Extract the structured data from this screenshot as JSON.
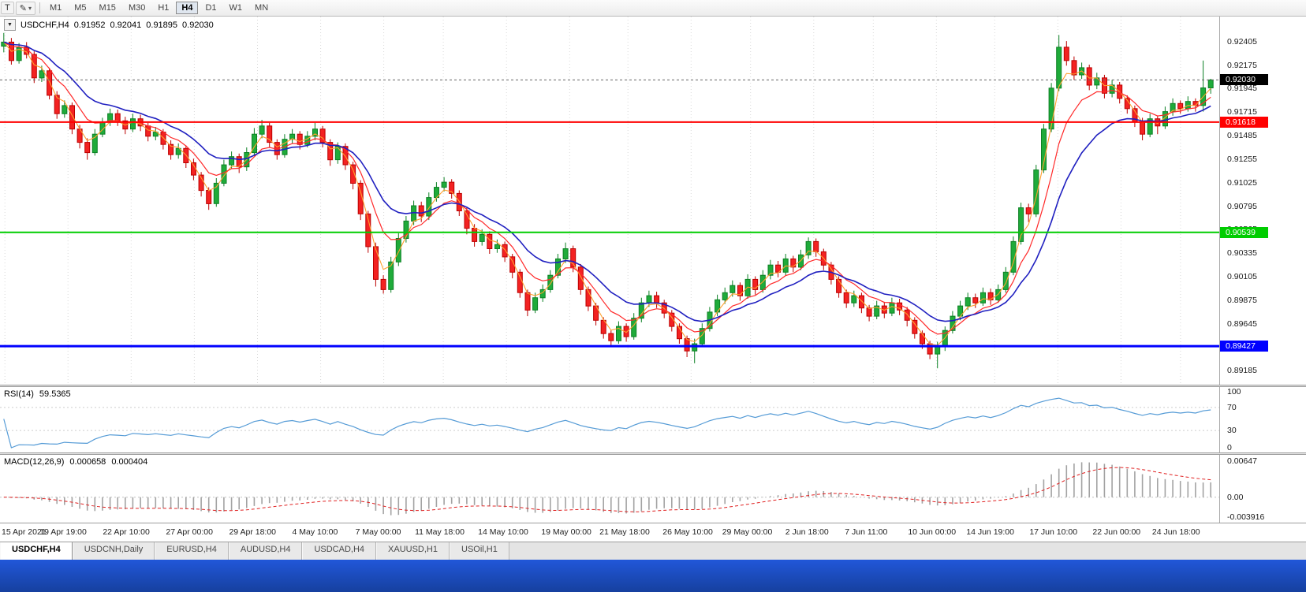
{
  "toolbar": {
    "left_buttons": [
      {
        "name": "templates-button",
        "glyph": "T",
        "dropdown": false
      },
      {
        "name": "drawing-tool-button",
        "glyph": "✎",
        "dropdown": true
      }
    ],
    "timeframes": [
      {
        "label": "M1",
        "active": false
      },
      {
        "label": "M5",
        "active": false
      },
      {
        "label": "M15",
        "active": false
      },
      {
        "label": "M30",
        "active": false
      },
      {
        "label": "H1",
        "active": false
      },
      {
        "label": "H4",
        "active": true
      },
      {
        "label": "D1",
        "active": false
      },
      {
        "label": "W1",
        "active": false
      },
      {
        "label": "MN",
        "active": false
      }
    ]
  },
  "chart_header": {
    "collapse_glyph": "▼",
    "symbol_period": "USDCHF,H4",
    "open": "0.91952",
    "high": "0.92041",
    "low": "0.91895",
    "close": "0.92030"
  },
  "rsi_panel": {
    "label": "RSI(14)",
    "value": "59.5365",
    "line_color": "#559bd6",
    "axis": [
      {
        "text": "100",
        "v": 100
      },
      {
        "text": "70",
        "v": 70
      },
      {
        "text": "30",
        "v": 30
      },
      {
        "text": "0",
        "v": 0
      }
    ]
  },
  "macd_panel": {
    "label": "MACD(12,26,9)",
    "main_value": "0.000658",
    "signal_value": "0.000404",
    "histogram_color": "#a3a3a3",
    "signal_color": "#e02020",
    "axis": [
      {
        "text": "0.00647",
        "role": "max"
      },
      {
        "text": "0.00",
        "role": "zero"
      },
      {
        "text": "-0.003916",
        "role": "min"
      }
    ]
  },
  "tabs": [
    {
      "label": "USDCHF,H4",
      "active": true
    },
    {
      "label": "USDCNH,Daily",
      "active": false
    },
    {
      "label": "EURUSD,H4",
      "active": false
    },
    {
      "label": "AUDUSD,H4",
      "active": false
    },
    {
      "label": "USDCAD,H4",
      "active": false
    },
    {
      "label": "XAUUSD,H1",
      "active": false
    },
    {
      "label": "USOil,H1",
      "active": false
    }
  ],
  "colors": {
    "bull": "#1fab3a",
    "bull_border": "#0c8024",
    "bear": "#f32222",
    "bear_border": "#bb0000",
    "grid": "#d9d9d9",
    "current_price_line": "#666666",
    "current_price_badge": "#000000",
    "taskbar_blue": "#2157d9"
  },
  "chart_data": {
    "type": "candlestick",
    "symbol": "USDCHF",
    "timeframe": "H4",
    "current_price": "0.92030",
    "price_axis": {
      "min": 0.8905,
      "max": 0.9265,
      "labels": [
        "0.92405",
        "0.92175",
        "0.91945",
        "0.91715",
        "0.91485",
        "0.91255",
        "0.91025",
        "0.90795",
        "0.90565",
        "0.90335",
        "0.90105",
        "0.89875",
        "0.89645",
        "0.89415",
        "0.89185"
      ]
    },
    "hlines": [
      {
        "price": 0.91618,
        "label": "0.91618",
        "color": "#ff0000",
        "width": 2
      },
      {
        "price": 0.90539,
        "label": "0.90539",
        "color": "#00cd00",
        "width": 2
      },
      {
        "price": 0.89427,
        "label": "0.89427",
        "color": "#0000ff",
        "width": 3
      }
    ],
    "moving_averages": [
      {
        "period": 3,
        "color": "#ff9f2e",
        "width": 1.1
      },
      {
        "period": 7,
        "color": "#ff2a2a",
        "width": 1.2
      },
      {
        "period": 14,
        "color": "#2020c0",
        "width": 1.6
      }
    ],
    "indicators": {
      "rsi_period": 14,
      "macd": [
        12,
        26,
        9
      ]
    },
    "time_labels": [
      {
        "text": "15 Apr 2021",
        "pos": 0.004
      },
      {
        "text": "19 Apr 19:00",
        "pos": 0.056
      },
      {
        "text": "22 Apr 10:00",
        "pos": 0.108
      },
      {
        "text": "27 Apr 00:00",
        "pos": 0.16
      },
      {
        "text": "29 Apr 18:00",
        "pos": 0.212
      },
      {
        "text": "4 May 10:00",
        "pos": 0.264
      },
      {
        "text": "7 May 00:00",
        "pos": 0.316
      },
      {
        "text": "11 May 18:00",
        "pos": 0.365
      },
      {
        "text": "14 May 10:00",
        "pos": 0.417
      },
      {
        "text": "19 May 00:00",
        "pos": 0.469
      },
      {
        "text": "21 May 18:00",
        "pos": 0.517
      },
      {
        "text": "26 May 10:00",
        "pos": 0.569
      },
      {
        "text": "29 May 00:00",
        "pos": 0.618
      },
      {
        "text": "2 Jun 18:00",
        "pos": 0.67
      },
      {
        "text": "7 Jun 11:00",
        "pos": 0.719
      },
      {
        "text": "10 Jun 00:00",
        "pos": 0.771
      },
      {
        "text": "14 Jun 19:00",
        "pos": 0.819
      },
      {
        "text": "17 Jun 10:00",
        "pos": 0.871
      },
      {
        "text": "22 Jun 00:00",
        "pos": 0.923
      },
      {
        "text": "24 Jun 18:00",
        "pos": 0.972
      }
    ],
    "candles": [
      [
        0.9236,
        0.9249,
        0.923,
        0.924
      ],
      [
        0.924,
        0.9244,
        0.9218,
        0.9222
      ],
      [
        0.9222,
        0.9239,
        0.9219,
        0.9235
      ],
      [
        0.9235,
        0.924,
        0.9224,
        0.9228
      ],
      [
        0.9228,
        0.9231,
        0.92,
        0.9205
      ],
      [
        0.9205,
        0.9217,
        0.9201,
        0.9212
      ],
      [
        0.9212,
        0.9215,
        0.9184,
        0.9188
      ],
      [
        0.9188,
        0.9192,
        0.9165,
        0.917
      ],
      [
        0.917,
        0.9183,
        0.9166,
        0.9178
      ],
      [
        0.9178,
        0.9181,
        0.915,
        0.9155
      ],
      [
        0.9155,
        0.9159,
        0.9136,
        0.9142
      ],
      [
        0.9142,
        0.9146,
        0.9125,
        0.9132
      ],
      [
        0.9132,
        0.9155,
        0.9129,
        0.915
      ],
      [
        0.915,
        0.9166,
        0.9147,
        0.9162
      ],
      [
        0.9162,
        0.9175,
        0.9158,
        0.917
      ],
      [
        0.917,
        0.9174,
        0.9158,
        0.9163
      ],
      [
        0.9163,
        0.9167,
        0.915,
        0.9155
      ],
      [
        0.9155,
        0.917,
        0.9152,
        0.9165
      ],
      [
        0.9165,
        0.9169,
        0.9153,
        0.9158
      ],
      [
        0.9158,
        0.9161,
        0.9143,
        0.9148
      ],
      [
        0.9148,
        0.9157,
        0.9144,
        0.9152
      ],
      [
        0.9152,
        0.9155,
        0.9135,
        0.914
      ],
      [
        0.914,
        0.9144,
        0.9125,
        0.913
      ],
      [
        0.913,
        0.9141,
        0.9126,
        0.9136
      ],
      [
        0.9136,
        0.9139,
        0.9117,
        0.9122
      ],
      [
        0.9122,
        0.9126,
        0.9105,
        0.911
      ],
      [
        0.911,
        0.9113,
        0.9089,
        0.9095
      ],
      [
        0.9095,
        0.9098,
        0.9076,
        0.9082
      ],
      [
        0.9082,
        0.9107,
        0.9079,
        0.9102
      ],
      [
        0.9102,
        0.9125,
        0.9099,
        0.912
      ],
      [
        0.912,
        0.9133,
        0.9116,
        0.9128
      ],
      [
        0.9128,
        0.9131,
        0.9112,
        0.9118
      ],
      [
        0.9118,
        0.9137,
        0.9114,
        0.9132
      ],
      [
        0.9132,
        0.9156,
        0.9129,
        0.915
      ],
      [
        0.915,
        0.9164,
        0.9146,
        0.9158
      ],
      [
        0.9158,
        0.9161,
        0.9137,
        0.9142
      ],
      [
        0.9142,
        0.9145,
        0.9125,
        0.913
      ],
      [
        0.913,
        0.915,
        0.9127,
        0.9145
      ],
      [
        0.9145,
        0.9155,
        0.9141,
        0.915
      ],
      [
        0.915,
        0.9153,
        0.9135,
        0.914
      ],
      [
        0.914,
        0.9153,
        0.9137,
        0.9148
      ],
      [
        0.9148,
        0.9161,
        0.9144,
        0.9155
      ],
      [
        0.9155,
        0.9158,
        0.9137,
        0.9142
      ],
      [
        0.9142,
        0.9145,
        0.9119,
        0.9125
      ],
      [
        0.9125,
        0.9142,
        0.9121,
        0.9138
      ],
      [
        0.9138,
        0.9141,
        0.9115,
        0.912
      ],
      [
        0.912,
        0.9123,
        0.9096,
        0.9102
      ],
      [
        0.9102,
        0.9105,
        0.9066,
        0.9072
      ],
      [
        0.9072,
        0.9075,
        0.9034,
        0.904
      ],
      [
        0.904,
        0.9044,
        0.9001,
        0.9008
      ],
      [
        0.9008,
        0.9012,
        0.8994,
        0.8998
      ],
      [
        0.8998,
        0.903,
        0.8995,
        0.9025
      ],
      [
        0.9025,
        0.9053,
        0.9021,
        0.9048
      ],
      [
        0.9048,
        0.907,
        0.9044,
        0.9065
      ],
      [
        0.9065,
        0.9085,
        0.9061,
        0.908
      ],
      [
        0.908,
        0.9084,
        0.9064,
        0.907
      ],
      [
        0.907,
        0.9093,
        0.9066,
        0.9088
      ],
      [
        0.9088,
        0.9103,
        0.9084,
        0.9098
      ],
      [
        0.9098,
        0.9108,
        0.9094,
        0.9103
      ],
      [
        0.9103,
        0.9106,
        0.9087,
        0.9092
      ],
      [
        0.9092,
        0.9095,
        0.907,
        0.9075
      ],
      [
        0.9075,
        0.9078,
        0.9052,
        0.9058
      ],
      [
        0.9058,
        0.9062,
        0.904,
        0.9045
      ],
      [
        0.9045,
        0.9057,
        0.9041,
        0.9052
      ],
      [
        0.9052,
        0.9055,
        0.9033,
        0.9038
      ],
      [
        0.9038,
        0.9047,
        0.9034,
        0.9042
      ],
      [
        0.9042,
        0.9045,
        0.9025,
        0.903
      ],
      [
        0.903,
        0.9033,
        0.9009,
        0.9015
      ],
      [
        0.9015,
        0.9018,
        0.899,
        0.8995
      ],
      [
        0.8995,
        0.8998,
        0.8972,
        0.8978
      ],
      [
        0.8978,
        0.8995,
        0.8975,
        0.899
      ],
      [
        0.899,
        0.9003,
        0.8986,
        0.8998
      ],
      [
        0.8998,
        0.9017,
        0.8995,
        0.9012
      ],
      [
        0.9012,
        0.9033,
        0.9009,
        0.9028
      ],
      [
        0.9028,
        0.9044,
        0.9024,
        0.9038
      ],
      [
        0.9038,
        0.9041,
        0.9015,
        0.902
      ],
      [
        0.902,
        0.9023,
        0.8993,
        0.8998
      ],
      [
        0.8998,
        0.9001,
        0.8977,
        0.8982
      ],
      [
        0.8982,
        0.8985,
        0.8963,
        0.8968
      ],
      [
        0.8968,
        0.8971,
        0.895,
        0.8955
      ],
      [
        0.8955,
        0.8958,
        0.8943,
        0.8948
      ],
      [
        0.8948,
        0.8967,
        0.8945,
        0.8962
      ],
      [
        0.8962,
        0.8965,
        0.8947,
        0.8952
      ],
      [
        0.8952,
        0.8975,
        0.8949,
        0.897
      ],
      [
        0.897,
        0.899,
        0.8966,
        0.8985
      ],
      [
        0.8985,
        0.8997,
        0.8981,
        0.8992
      ],
      [
        0.8992,
        0.8996,
        0.898,
        0.8985
      ],
      [
        0.8985,
        0.8988,
        0.897,
        0.8975
      ],
      [
        0.8975,
        0.8978,
        0.8957,
        0.8962
      ],
      [
        0.8962,
        0.8965,
        0.8945,
        0.895
      ],
      [
        0.895,
        0.8953,
        0.8932,
        0.8938
      ],
      [
        0.8938,
        0.895,
        0.8926,
        0.8945
      ],
      [
        0.8945,
        0.8965,
        0.8942,
        0.896
      ],
      [
        0.896,
        0.8981,
        0.8957,
        0.8976
      ],
      [
        0.8976,
        0.8993,
        0.8972,
        0.8988
      ],
      [
        0.8988,
        0.9,
        0.8984,
        0.8995
      ],
      [
        0.8995,
        0.9007,
        0.8991,
        0.9002
      ],
      [
        0.9002,
        0.9005,
        0.8987,
        0.8992
      ],
      [
        0.8992,
        0.9013,
        0.8989,
        0.9008
      ],
      [
        0.9008,
        0.9011,
        0.8993,
        0.8998
      ],
      [
        0.8998,
        0.9017,
        0.8995,
        0.9012
      ],
      [
        0.9012,
        0.9027,
        0.9008,
        0.9022
      ],
      [
        0.9022,
        0.9026,
        0.901,
        0.9015
      ],
      [
        0.9015,
        0.9033,
        0.9012,
        0.9028
      ],
      [
        0.9028,
        0.9031,
        0.9015,
        0.902
      ],
      [
        0.902,
        0.9037,
        0.9017,
        0.9032
      ],
      [
        0.9032,
        0.9049,
        0.9028,
        0.9045
      ],
      [
        0.9045,
        0.9048,
        0.903,
        0.9035
      ],
      [
        0.9035,
        0.9038,
        0.9017,
        0.9022
      ],
      [
        0.9022,
        0.9025,
        0.9003,
        0.9008
      ],
      [
        0.9008,
        0.9011,
        0.899,
        0.8995
      ],
      [
        0.8995,
        0.8998,
        0.898,
        0.8985
      ],
      [
        0.8985,
        0.8997,
        0.8981,
        0.8992
      ],
      [
        0.8992,
        0.8995,
        0.8975,
        0.898
      ],
      [
        0.898,
        0.8983,
        0.8967,
        0.8972
      ],
      [
        0.8972,
        0.8987,
        0.8969,
        0.8982
      ],
      [
        0.8982,
        0.8986,
        0.897,
        0.8975
      ],
      [
        0.8975,
        0.899,
        0.8972,
        0.8985
      ],
      [
        0.8985,
        0.8989,
        0.8973,
        0.8978
      ],
      [
        0.8978,
        0.8981,
        0.8962,
        0.8968
      ],
      [
        0.8968,
        0.8971,
        0.895,
        0.8955
      ],
      [
        0.8955,
        0.8958,
        0.894,
        0.8945
      ],
      [
        0.8945,
        0.8948,
        0.893,
        0.8935
      ],
      [
        0.8935,
        0.8947,
        0.8921,
        0.8942
      ],
      [
        0.8942,
        0.8962,
        0.8938,
        0.8958
      ],
      [
        0.8958,
        0.8977,
        0.8955,
        0.8972
      ],
      [
        0.8972,
        0.8987,
        0.8968,
        0.8982
      ],
      [
        0.8982,
        0.8995,
        0.8978,
        0.899
      ],
      [
        0.899,
        0.8994,
        0.898,
        0.8985
      ],
      [
        0.8985,
        0.9,
        0.8982,
        0.8995
      ],
      [
        0.8995,
        0.8999,
        0.8983,
        0.8988
      ],
      [
        0.8988,
        0.9003,
        0.8985,
        0.8998
      ],
      [
        0.8998,
        0.902,
        0.8995,
        0.9015
      ],
      [
        0.9015,
        0.905,
        0.9012,
        0.9045
      ],
      [
        0.9045,
        0.9083,
        0.9042,
        0.9078
      ],
      [
        0.9078,
        0.9082,
        0.9064,
        0.9072
      ],
      [
        0.9072,
        0.912,
        0.9069,
        0.9115
      ],
      [
        0.9115,
        0.916,
        0.9112,
        0.9155
      ],
      [
        0.9155,
        0.92,
        0.9152,
        0.9195
      ],
      [
        0.9195,
        0.9247,
        0.9192,
        0.9235
      ],
      [
        0.9235,
        0.9241,
        0.9217,
        0.9222
      ],
      [
        0.9222,
        0.9226,
        0.9203,
        0.9208
      ],
      [
        0.9208,
        0.922,
        0.9204,
        0.9215
      ],
      [
        0.9215,
        0.9218,
        0.9193,
        0.9198
      ],
      [
        0.9198,
        0.921,
        0.9194,
        0.9205
      ],
      [
        0.9205,
        0.9208,
        0.9185,
        0.919
      ],
      [
        0.919,
        0.9203,
        0.9186,
        0.9198
      ],
      [
        0.9198,
        0.9201,
        0.918,
        0.9185
      ],
      [
        0.9185,
        0.9188,
        0.917,
        0.9175
      ],
      [
        0.9175,
        0.9178,
        0.9157,
        0.9162
      ],
      [
        0.9162,
        0.9166,
        0.9144,
        0.915
      ],
      [
        0.915,
        0.917,
        0.9147,
        0.9165
      ],
      [
        0.9165,
        0.9168,
        0.915,
        0.9158
      ],
      [
        0.9158,
        0.9177,
        0.9155,
        0.9172
      ],
      [
        0.9172,
        0.9185,
        0.9168,
        0.918
      ],
      [
        0.918,
        0.9183,
        0.917,
        0.9175
      ],
      [
        0.9175,
        0.9187,
        0.9172,
        0.9182
      ],
      [
        0.9182,
        0.9185,
        0.9172,
        0.9178
      ],
      [
        0.9178,
        0.9222,
        0.9172,
        0.91952
      ],
      [
        0.91952,
        0.92041,
        0.91895,
        0.9203
      ]
    ]
  }
}
